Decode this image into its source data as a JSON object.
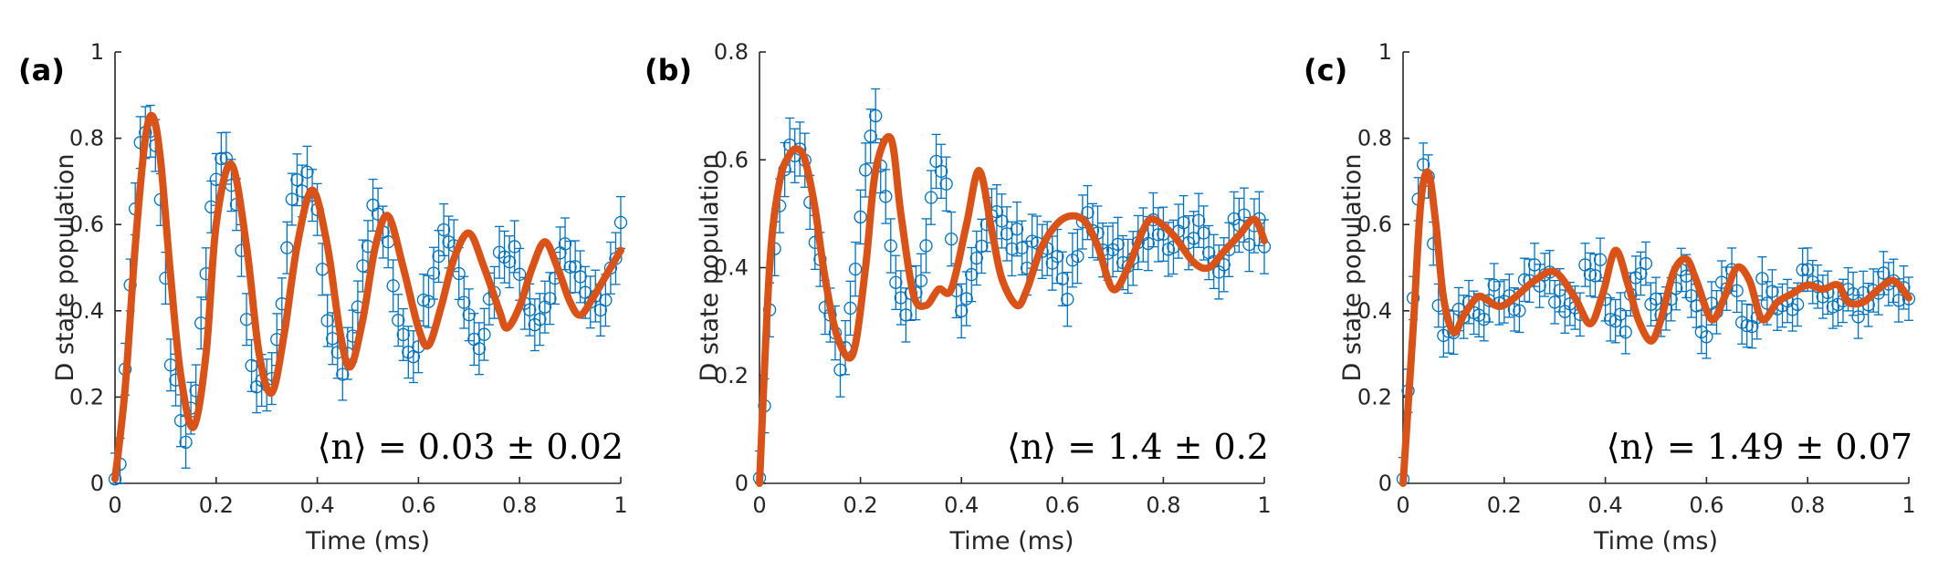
{
  "colors": {
    "data": "#0072BD",
    "fit": "#D95319",
    "axis": "#262626"
  },
  "chart_data": [
    {
      "type": "scatter",
      "panel": "(a)",
      "xlabel": "Time (ms)",
      "ylabel": "D state population",
      "xlim": [
        0,
        1
      ],
      "ylim": [
        0,
        1
      ],
      "xticks": [
        "0",
        "0.2",
        "0.4",
        "0.6",
        "0.8",
        "1"
      ],
      "yticks": [
        "0",
        "0.2",
        "0.4",
        "0.6",
        "0.8",
        "1"
      ],
      "annotation": "⟨n⟩ = 0.03 ± 0.02",
      "series": [
        {
          "kind": "data-with-error-bars",
          "x": [
            0.0,
            0.01,
            0.02,
            0.03,
            0.04,
            0.05,
            0.06,
            0.07,
            0.08,
            0.09,
            0.1,
            0.11,
            0.12,
            0.13,
            0.14,
            0.15,
            0.16,
            0.17,
            0.18,
            0.19,
            0.2,
            0.21,
            0.22,
            0.23,
            0.24,
            0.25,
            0.26,
            0.27,
            0.28,
            0.29,
            0.3,
            0.31,
            0.32,
            0.33,
            0.34,
            0.35,
            0.36,
            0.37,
            0.38,
            0.39,
            0.4,
            0.41,
            0.42,
            0.43,
            0.44,
            0.45,
            0.46,
            0.47,
            0.48,
            0.49,
            0.5,
            0.51,
            0.52,
            0.53,
            0.54,
            0.55,
            0.56,
            0.57,
            0.58,
            0.59,
            0.6,
            0.61,
            0.62,
            0.63,
            0.64,
            0.65,
            0.66,
            0.67,
            0.68,
            0.69,
            0.7,
            0.71,
            0.72,
            0.73,
            0.74,
            0.75,
            0.76,
            0.77,
            0.78,
            0.79,
            0.8,
            0.81,
            0.82,
            0.83,
            0.84,
            0.85,
            0.86,
            0.87,
            0.88,
            0.89,
            0.9,
            0.91,
            0.92,
            0.93,
            0.94,
            0.95,
            0.96,
            0.97,
            0.98,
            0.99,
            1.0
          ],
          "y": [
            0.01,
            0.08,
            0.26,
            0.47,
            0.64,
            0.78,
            0.84,
            0.83,
            0.78,
            0.62,
            0.45,
            0.3,
            0.2,
            0.12,
            0.1,
            0.14,
            0.22,
            0.36,
            0.5,
            0.62,
            0.7,
            0.74,
            0.76,
            0.72,
            0.66,
            0.54,
            0.42,
            0.3,
            0.23,
            0.2,
            0.21,
            0.26,
            0.34,
            0.44,
            0.54,
            0.62,
            0.67,
            0.68,
            0.7,
            0.66,
            0.6,
            0.5,
            0.4,
            0.32,
            0.28,
            0.27,
            0.3,
            0.37,
            0.44,
            0.52,
            0.58,
            0.62,
            0.62,
            0.59,
            0.53,
            0.46,
            0.4,
            0.36,
            0.33,
            0.32,
            0.35,
            0.4,
            0.46,
            0.52,
            0.56,
            0.58,
            0.58,
            0.56,
            0.5,
            0.43,
            0.39,
            0.36,
            0.35,
            0.37,
            0.42,
            0.47,
            0.52,
            0.55,
            0.55,
            0.53,
            0.49,
            0.45,
            0.42,
            0.4,
            0.39,
            0.41,
            0.44,
            0.48,
            0.5,
            0.53,
            0.53,
            0.5,
            0.46,
            0.42,
            0.4,
            0.4,
            0.43,
            0.46,
            0.5,
            0.54,
            0.57
          ],
          "yerr": 0.06
        },
        {
          "kind": "fit",
          "x": [
            0.0,
            0.02,
            0.04,
            0.06,
            0.075,
            0.09,
            0.11,
            0.13,
            0.155,
            0.18,
            0.2,
            0.23,
            0.26,
            0.285,
            0.31,
            0.335,
            0.36,
            0.39,
            0.42,
            0.445,
            0.465,
            0.49,
            0.515,
            0.54,
            0.57,
            0.6,
            0.62,
            0.645,
            0.67,
            0.7,
            0.73,
            0.76,
            0.775,
            0.8,
            0.825,
            0.85,
            0.875,
            0.9,
            0.92,
            0.945,
            0.97,
            1.0
          ],
          "y": [
            0.01,
            0.22,
            0.55,
            0.8,
            0.85,
            0.75,
            0.48,
            0.25,
            0.13,
            0.3,
            0.6,
            0.74,
            0.55,
            0.3,
            0.21,
            0.35,
            0.55,
            0.68,
            0.55,
            0.35,
            0.27,
            0.38,
            0.55,
            0.62,
            0.5,
            0.36,
            0.32,
            0.41,
            0.52,
            0.58,
            0.5,
            0.4,
            0.36,
            0.41,
            0.5,
            0.56,
            0.5,
            0.42,
            0.39,
            0.43,
            0.48,
            0.54
          ]
        }
      ]
    },
    {
      "type": "scatter",
      "panel": "(b)",
      "xlabel": "Time (ms)",
      "ylabel": "D state population",
      "xlim": [
        0,
        1
      ],
      "ylim": [
        0,
        0.8
      ],
      "xticks": [
        "0",
        "0.2",
        "0.4",
        "0.6",
        "0.8",
        "1"
      ],
      "yticks": [
        "0",
        "0.2",
        "0.4",
        "0.6",
        "0.8"
      ],
      "annotation": "⟨n⟩ = 1.4 ± 0.2",
      "series": [
        {
          "kind": "data-with-error-bars",
          "x": [
            0.0,
            0.01,
            0.02,
            0.03,
            0.04,
            0.05,
            0.06,
            0.07,
            0.08,
            0.09,
            0.1,
            0.11,
            0.12,
            0.13,
            0.14,
            0.15,
            0.16,
            0.17,
            0.18,
            0.19,
            0.2,
            0.21,
            0.22,
            0.23,
            0.24,
            0.25,
            0.26,
            0.27,
            0.28,
            0.29,
            0.3,
            0.31,
            0.32,
            0.33,
            0.34,
            0.35,
            0.36,
            0.37,
            0.38,
            0.39,
            0.4,
            0.41,
            0.42,
            0.43,
            0.44,
            0.45,
            0.46,
            0.47,
            0.48,
            0.49,
            0.5,
            0.51,
            0.52,
            0.53,
            0.54,
            0.55,
            0.56,
            0.57,
            0.58,
            0.59,
            0.6,
            0.61,
            0.62,
            0.63,
            0.64,
            0.65,
            0.66,
            0.67,
            0.68,
            0.69,
            0.7,
            0.71,
            0.72,
            0.73,
            0.74,
            0.75,
            0.76,
            0.77,
            0.78,
            0.79,
            0.8,
            0.81,
            0.82,
            0.83,
            0.84,
            0.85,
            0.86,
            0.87,
            0.88,
            0.89,
            0.9,
            0.91,
            0.92,
            0.93,
            0.94,
            0.95,
            0.96,
            0.97,
            0.98,
            0.99,
            1.0
          ],
          "y": [
            0.01,
            0.13,
            0.3,
            0.45,
            0.54,
            0.58,
            0.6,
            0.61,
            0.6,
            0.57,
            0.52,
            0.46,
            0.4,
            0.34,
            0.29,
            0.25,
            0.23,
            0.25,
            0.3,
            0.39,
            0.5,
            0.58,
            0.63,
            0.65,
            0.62,
            0.55,
            0.46,
            0.38,
            0.33,
            0.32,
            0.33,
            0.34,
            0.36,
            0.42,
            0.52,
            0.57,
            0.58,
            0.53,
            0.45,
            0.38,
            0.34,
            0.34,
            0.37,
            0.41,
            0.44,
            0.46,
            0.48,
            0.49,
            0.49,
            0.48,
            0.46,
            0.44,
            0.42,
            0.42,
            0.43,
            0.44,
            0.45,
            0.44,
            0.42,
            0.39,
            0.37,
            0.37,
            0.4,
            0.44,
            0.48,
            0.5,
            0.49,
            0.47,
            0.45,
            0.44,
            0.43,
            0.42,
            0.41,
            0.41,
            0.42,
            0.44,
            0.46,
            0.47,
            0.48,
            0.48,
            0.47,
            0.46,
            0.45,
            0.45,
            0.46,
            0.47,
            0.48,
            0.48,
            0.46,
            0.44,
            0.42,
            0.41,
            0.42,
            0.44,
            0.46,
            0.48,
            0.47,
            0.45,
            0.47,
            0.48,
            0.45
          ],
          "yerr": 0.05
        },
        {
          "kind": "fit",
          "x": [
            0.0,
            0.02,
            0.04,
            0.06,
            0.075,
            0.09,
            0.11,
            0.13,
            0.155,
            0.185,
            0.21,
            0.23,
            0.26,
            0.28,
            0.305,
            0.33,
            0.355,
            0.38,
            0.41,
            0.435,
            0.46,
            0.48,
            0.51,
            0.53,
            0.56,
            0.6,
            0.64,
            0.67,
            0.7,
            0.73,
            0.76,
            0.78,
            0.82,
            0.86,
            0.89,
            0.92,
            0.95,
            0.98,
            1.0
          ],
          "y": [
            0.0,
            0.4,
            0.56,
            0.61,
            0.62,
            0.6,
            0.51,
            0.38,
            0.27,
            0.24,
            0.4,
            0.58,
            0.64,
            0.5,
            0.35,
            0.33,
            0.36,
            0.36,
            0.48,
            0.58,
            0.47,
            0.38,
            0.33,
            0.36,
            0.44,
            0.49,
            0.49,
            0.44,
            0.36,
            0.4,
            0.47,
            0.49,
            0.46,
            0.41,
            0.4,
            0.43,
            0.46,
            0.49,
            0.45
          ]
        }
      ]
    },
    {
      "type": "scatter",
      "panel": "(c)",
      "xlabel": "Time (ms)",
      "ylabel": "D state population",
      "xlim": [
        0,
        1
      ],
      "ylim": [
        0,
        1
      ],
      "xticks": [
        "0",
        "0.2",
        "0.4",
        "0.6",
        "0.8",
        "1"
      ],
      "yticks": [
        "0",
        "0.2",
        "0.4",
        "0.6",
        "0.8",
        "1"
      ],
      "annotation": "⟨n⟩ = 1.49 ± 0.07",
      "series": [
        {
          "kind": "data-with-error-bars",
          "x": [
            0.0,
            0.01,
            0.02,
            0.03,
            0.04,
            0.05,
            0.06,
            0.07,
            0.08,
            0.09,
            0.1,
            0.11,
            0.12,
            0.13,
            0.14,
            0.15,
            0.16,
            0.17,
            0.18,
            0.19,
            0.2,
            0.21,
            0.22,
            0.23,
            0.24,
            0.25,
            0.26,
            0.27,
            0.28,
            0.29,
            0.3,
            0.31,
            0.32,
            0.33,
            0.34,
            0.35,
            0.36,
            0.37,
            0.38,
            0.39,
            0.4,
            0.41,
            0.42,
            0.43,
            0.44,
            0.45,
            0.46,
            0.47,
            0.48,
            0.49,
            0.5,
            0.51,
            0.52,
            0.53,
            0.54,
            0.55,
            0.56,
            0.57,
            0.58,
            0.59,
            0.6,
            0.61,
            0.62,
            0.63,
            0.64,
            0.65,
            0.66,
            0.67,
            0.68,
            0.69,
            0.7,
            0.71,
            0.72,
            0.73,
            0.74,
            0.75,
            0.76,
            0.77,
            0.78,
            0.79,
            0.8,
            0.81,
            0.82,
            0.83,
            0.84,
            0.85,
            0.86,
            0.87,
            0.88,
            0.89,
            0.9,
            0.91,
            0.92,
            0.93,
            0.94,
            0.95,
            0.96,
            0.97,
            0.98,
            0.99,
            1.0
          ],
          "y": [
            0.01,
            0.18,
            0.45,
            0.64,
            0.72,
            0.68,
            0.56,
            0.44,
            0.37,
            0.34,
            0.35,
            0.38,
            0.41,
            0.43,
            0.43,
            0.42,
            0.41,
            0.41,
            0.42,
            0.43,
            0.44,
            0.44,
            0.43,
            0.43,
            0.44,
            0.46,
            0.48,
            0.49,
            0.49,
            0.47,
            0.44,
            0.41,
            0.39,
            0.38,
            0.4,
            0.43,
            0.47,
            0.5,
            0.51,
            0.49,
            0.45,
            0.41,
            0.38,
            0.37,
            0.39,
            0.43,
            0.47,
            0.5,
            0.49,
            0.45,
            0.4,
            0.37,
            0.37,
            0.4,
            0.45,
            0.49,
            0.5,
            0.47,
            0.43,
            0.39,
            0.37,
            0.39,
            0.43,
            0.47,
            0.48,
            0.46,
            0.43,
            0.4,
            0.39,
            0.4,
            0.42,
            0.44,
            0.45,
            0.45,
            0.44,
            0.43,
            0.43,
            0.44,
            0.45,
            0.46,
            0.46,
            0.45,
            0.44,
            0.43,
            0.43,
            0.44,
            0.45,
            0.45,
            0.44,
            0.43,
            0.42,
            0.42,
            0.43,
            0.45,
            0.46,
            0.46,
            0.45,
            0.44,
            0.43,
            0.44,
            0.45
          ],
          "yerr": 0.05
        },
        {
          "kind": "fit",
          "x": [
            0.0,
            0.02,
            0.035,
            0.05,
            0.065,
            0.08,
            0.1,
            0.12,
            0.145,
            0.16,
            0.19,
            0.22,
            0.26,
            0.3,
            0.34,
            0.37,
            0.395,
            0.42,
            0.445,
            0.465,
            0.49,
            0.51,
            0.535,
            0.56,
            0.58,
            0.61,
            0.635,
            0.66,
            0.685,
            0.71,
            0.74,
            0.77,
            0.8,
            0.83,
            0.86,
            0.88,
            0.91,
            0.94,
            0.97,
            1.0
          ],
          "y": [
            0.0,
            0.36,
            0.65,
            0.72,
            0.6,
            0.43,
            0.35,
            0.39,
            0.43,
            0.43,
            0.41,
            0.43,
            0.47,
            0.49,
            0.43,
            0.37,
            0.44,
            0.54,
            0.46,
            0.38,
            0.33,
            0.38,
            0.49,
            0.52,
            0.47,
            0.38,
            0.43,
            0.5,
            0.47,
            0.38,
            0.42,
            0.44,
            0.46,
            0.45,
            0.46,
            0.42,
            0.42,
            0.45,
            0.47,
            0.43
          ]
        }
      ]
    }
  ]
}
